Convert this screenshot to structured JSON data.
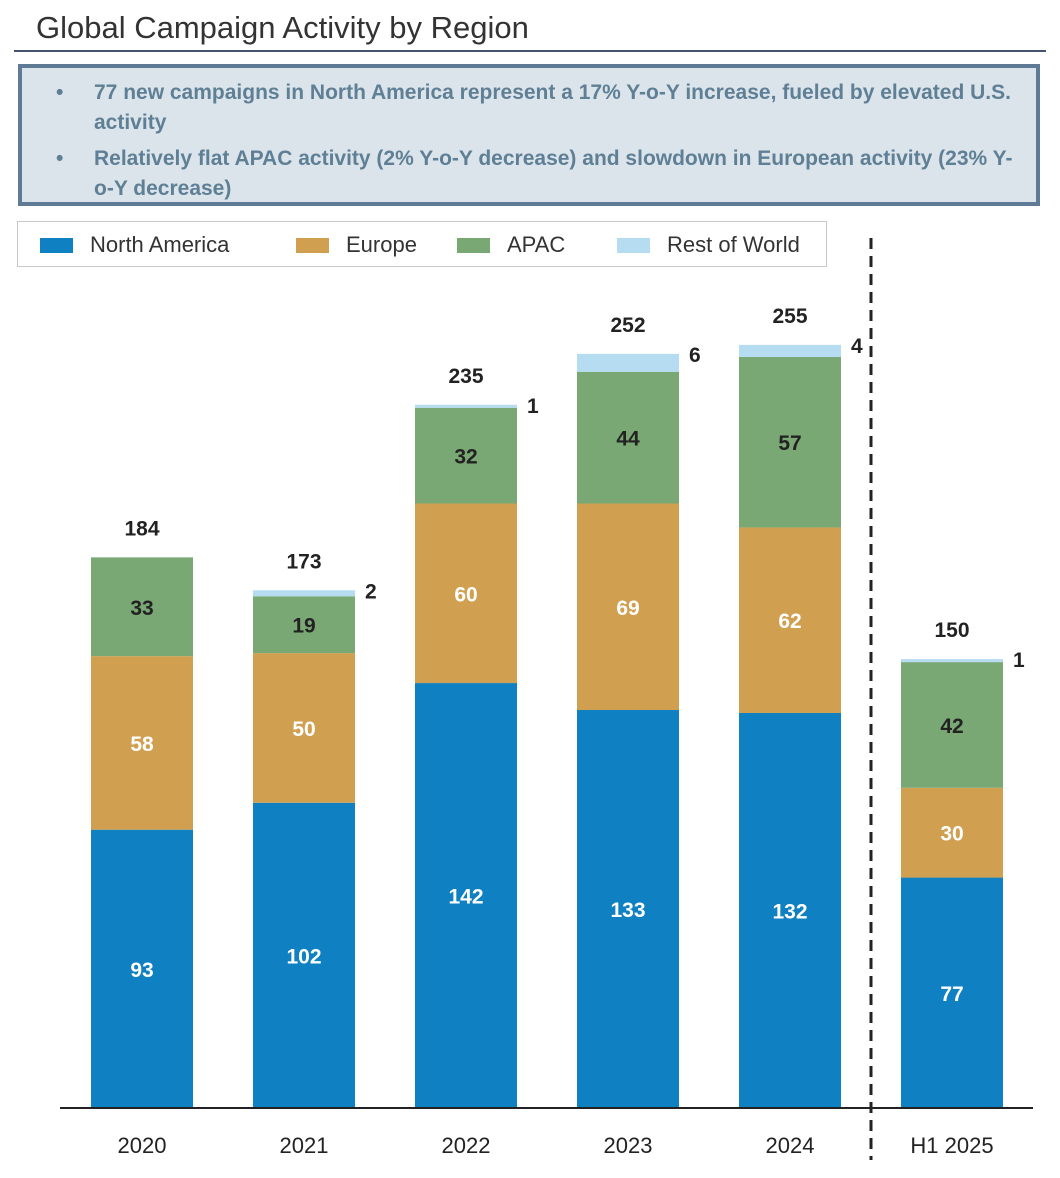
{
  "header": {
    "title": "Global Campaign Activity by Region"
  },
  "callout": {
    "bullet_glyph": "•",
    "bullets": [
      "77 new campaigns in North America represent a 17% Y-o-Y increase, fueled by elevated U.S. activity",
      "Relatively flat APAC activity (2% Y-o-Y decrease) and slowdown in European activity (23% Y-o-Y decrease)"
    ]
  },
  "legend": {
    "items": [
      {
        "label": "North America",
        "color": "#0f80c1"
      },
      {
        "label": "Europe",
        "color": "#d0a050"
      },
      {
        "label": "APAC",
        "color": "#7aa874"
      },
      {
        "label": "Rest of World",
        "color": "#b6dcf2"
      }
    ]
  },
  "chart_data": {
    "type": "bar",
    "stacked": true,
    "title": "Global Campaign Activity by Region",
    "categories": [
      "2020",
      "2021",
      "2022",
      "2023",
      "2024",
      "H1 2025"
    ],
    "series": [
      {
        "name": "North America",
        "color": "#0f80c1",
        "label_color": "#ffffff",
        "values": [
          93,
          102,
          142,
          133,
          132,
          77
        ]
      },
      {
        "name": "Europe",
        "color": "#d0a050",
        "label_color": "#ffffff",
        "values": [
          58,
          50,
          60,
          69,
          62,
          30
        ]
      },
      {
        "name": "APAC",
        "color": "#7aa874",
        "label_color": "#222222",
        "values": [
          33,
          19,
          32,
          44,
          57,
          42
        ]
      },
      {
        "name": "Rest of World",
        "color": "#b6dcf2",
        "label_color": "#222222",
        "values": [
          0,
          2,
          1,
          6,
          4,
          1
        ]
      }
    ],
    "totals": [
      184,
      173,
      235,
      252,
      255,
      150
    ],
    "ylim": [
      0,
      268
    ],
    "separator_before": "H1 2025",
    "xlabel": "",
    "ylabel": "",
    "grid": false,
    "legend_position": "top-left"
  }
}
